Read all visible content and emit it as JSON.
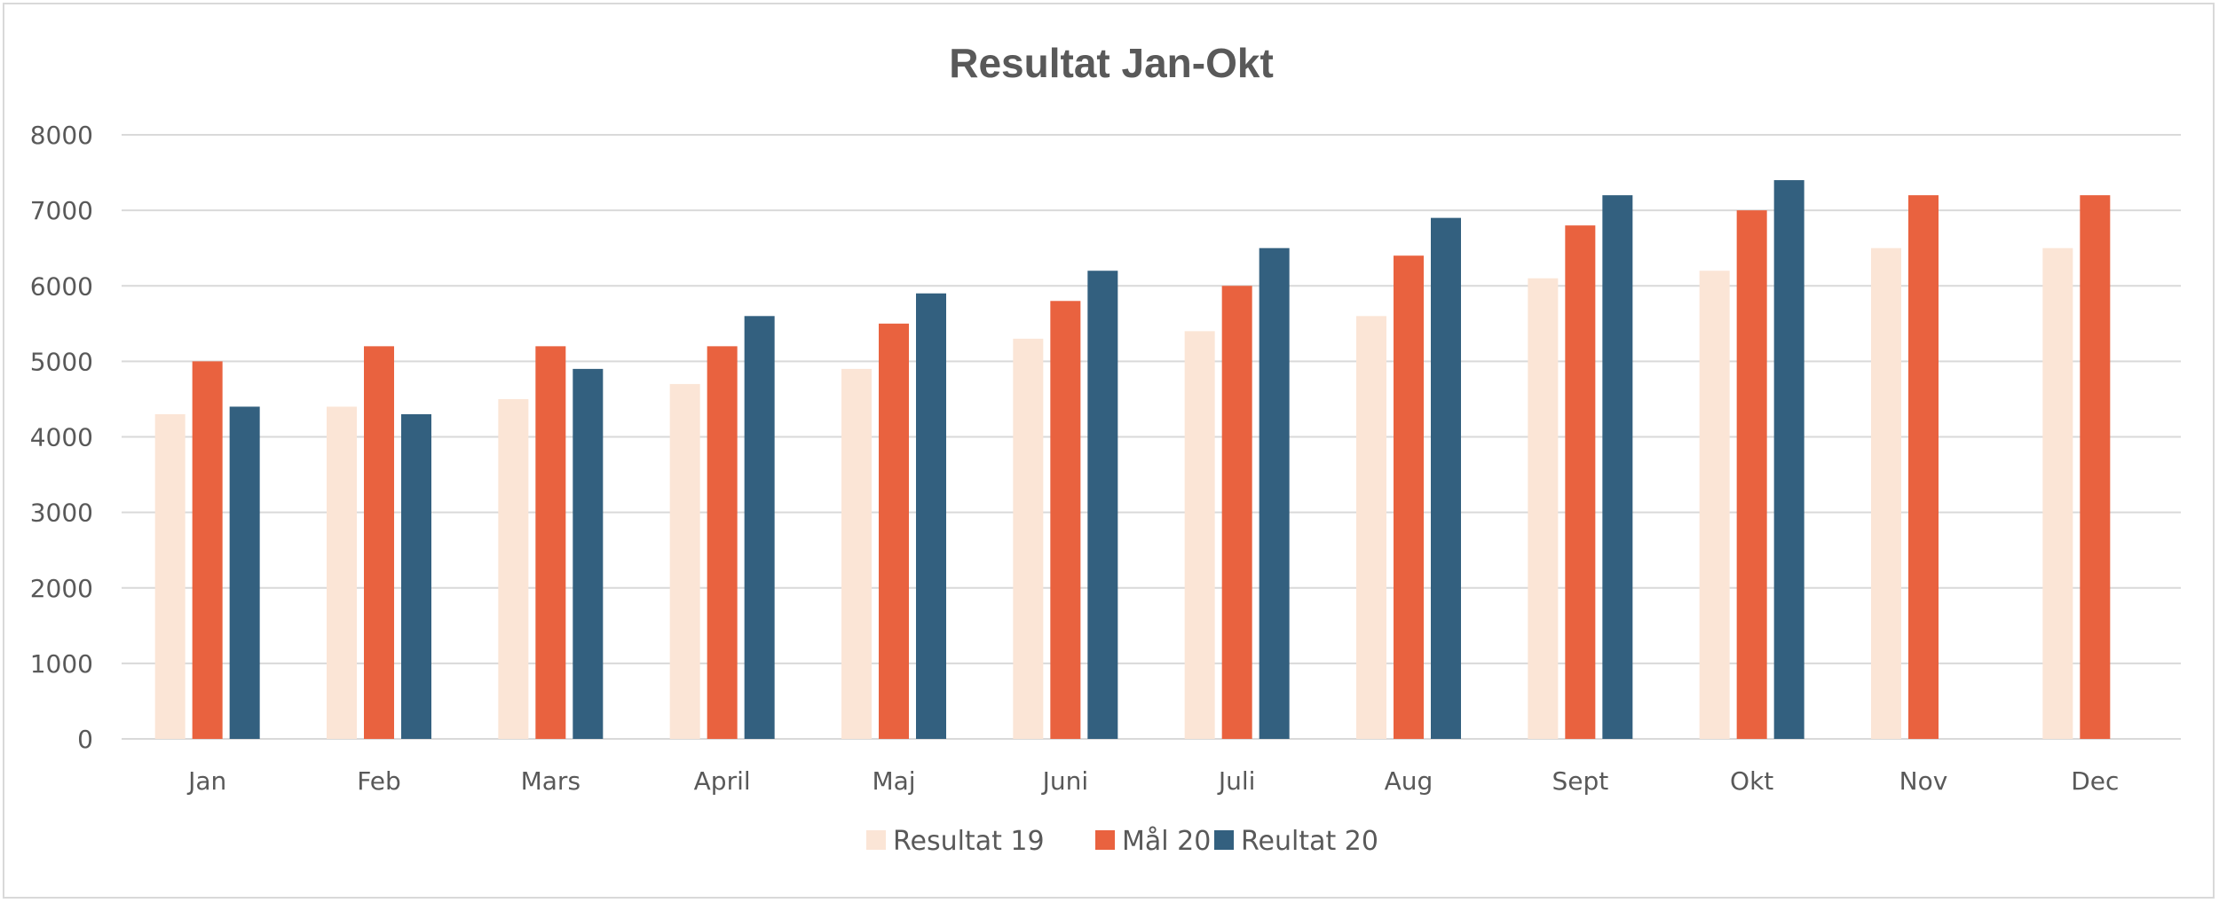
{
  "chart_data": {
    "type": "bar",
    "title": "Resultat Jan-Okt",
    "xlabel": "",
    "ylabel": "",
    "ylim": [
      0,
      8000
    ],
    "yticks": [
      0,
      1000,
      2000,
      3000,
      4000,
      5000,
      6000,
      7000,
      8000
    ],
    "grid": true,
    "legend_position": "bottom",
    "categories": [
      "Jan",
      "Feb",
      "Mars",
      "April",
      "Maj",
      "Juni",
      "Juli",
      "Aug",
      "Sept",
      "Okt",
      "Nov",
      "Dec"
    ],
    "series": [
      {
        "name": "Resultat 19",
        "color": "#fbe5d6",
        "values": [
          4300,
          4400,
          4500,
          4700,
          4900,
          5300,
          5400,
          5600,
          6100,
          6200,
          6500,
          6500
        ]
      },
      {
        "name": "Mål 20",
        "color": "#e9623f",
        "values": [
          5000,
          5200,
          5200,
          5200,
          5500,
          5800,
          6000,
          6400,
          6800,
          7000,
          7200,
          7200
        ]
      },
      {
        "name": "Reultat 20",
        "color": "#33607f",
        "values": [
          4400,
          4300,
          4900,
          5600,
          5900,
          6200,
          6500,
          6900,
          7200,
          7400,
          null,
          null
        ]
      }
    ]
  }
}
